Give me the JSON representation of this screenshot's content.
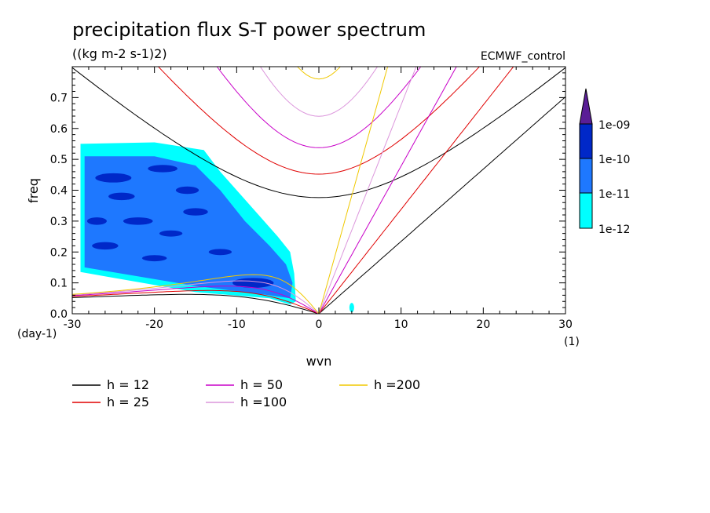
{
  "chart_data": {
    "type": "line",
    "title": "precipitation flux S-T power spectrum",
    "subtitle": "((kg m-2 s-1)2)",
    "source_label": "ECMWF_control",
    "xlabel": "wvn",
    "ylabel": "freq",
    "x_unit_label": "(1)",
    "y_unit_label": "(day-1)",
    "xlim": [
      -30,
      30
    ],
    "ylim": [
      0,
      0.8
    ],
    "x_ticks": [
      -30,
      -20,
      -10,
      0,
      10,
      20,
      30
    ],
    "x_tick_labels": [
      "-30",
      "-20",
      "-10",
      "0",
      "10",
      "20",
      "30"
    ],
    "y_ticks": [
      0,
      0.1,
      0.2,
      0.3,
      0.4,
      0.5,
      0.6,
      0.7
    ],
    "y_tick_labels": [
      "0.0",
      "0.1",
      "0.2",
      "0.3",
      "0.4",
      "0.5",
      "0.6",
      "0.7"
    ],
    "grid": false,
    "legend_position": "bottom",
    "series": [
      {
        "name": "h = 12",
        "color": "#000000",
        "equivalent_depth": 12
      },
      {
        "name": "h = 25",
        "color": "#e00000",
        "equivalent_depth": 25
      },
      {
        "name": "h = 50",
        "color": "#c800c8",
        "equivalent_depth": 50
      },
      {
        "name": "h =100",
        "color": "#dc96dc",
        "equivalent_depth": 100
      },
      {
        "name": "h =200",
        "color": "#f0c800",
        "equivalent_depth": 200
      }
    ],
    "color_scale": {
      "levels": [
        "1e-12",
        "1e-11",
        "1e-10",
        "1e-09"
      ],
      "colors": [
        "#00ffff",
        "#1e78ff",
        "#0028c8",
        "#5a1e96"
      ]
    }
  }
}
